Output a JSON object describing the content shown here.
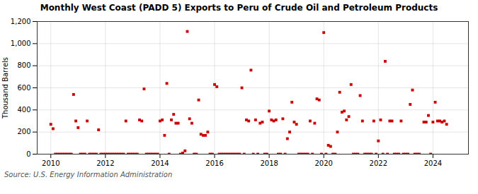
{
  "chart_data": {
    "type": "scatter",
    "title": "Monthly West Coast (PADD 5) Exports to Peru of Crude Oil and Petroleum Products",
    "ylabel": "Thousand Barrels",
    "source": "Source: U.S. Energy Information Administration",
    "color": "#cc0000",
    "marker": "square",
    "grid": true,
    "ylim": [
      0,
      1200
    ],
    "yticks": [
      0,
      200,
      400,
      600,
      800,
      {
        "value": 1000,
        "label": "1,000"
      },
      {
        "value": 1200,
        "label": "1,200"
      }
    ],
    "xlim": [
      2009.5,
      2025.3
    ],
    "xticks": [
      2010,
      2012,
      2014,
      2016,
      2018,
      2020,
      2022,
      2024
    ],
    "x": [
      2010.0,
      2010.083,
      2010.167,
      2010.25,
      2010.333,
      2010.417,
      2010.5,
      2010.583,
      2010.667,
      2010.75,
      2010.833,
      2010.917,
      2011.0,
      2011.083,
      2011.167,
      2011.25,
      2011.333,
      2011.417,
      2011.5,
      2011.583,
      2011.667,
      2011.75,
      2011.833,
      2011.917,
      2012.0,
      2012.083,
      2012.167,
      2012.25,
      2012.333,
      2012.417,
      2012.5,
      2012.583,
      2012.667,
      2012.75,
      2012.833,
      2012.917,
      2013.0,
      2013.083,
      2013.167,
      2013.25,
      2013.333,
      2013.417,
      2013.5,
      2013.583,
      2013.667,
      2013.75,
      2013.833,
      2013.917,
      2014.0,
      2014.083,
      2014.167,
      2014.25,
      2014.333,
      2014.417,
      2014.5,
      2014.583,
      2014.667,
      2014.75,
      2014.833,
      2014.917,
      2015.0,
      2015.083,
      2015.167,
      2015.25,
      2015.333,
      2015.417,
      2015.5,
      2015.583,
      2015.667,
      2015.75,
      2015.833,
      2015.917,
      2016.0,
      2016.083,
      2016.167,
      2016.25,
      2016.333,
      2016.417,
      2016.5,
      2016.583,
      2016.667,
      2016.75,
      2016.833,
      2016.917,
      2017.0,
      2017.083,
      2017.167,
      2017.25,
      2017.333,
      2017.417,
      2017.5,
      2017.583,
      2017.667,
      2017.75,
      2017.833,
      2017.917,
      2018.0,
      2018.083,
      2018.167,
      2018.25,
      2018.333,
      2018.417,
      2018.5,
      2018.583,
      2018.667,
      2018.75,
      2018.833,
      2018.917,
      2019.0,
      2019.083,
      2019.167,
      2019.25,
      2019.333,
      2019.417,
      2019.5,
      2019.583,
      2019.667,
      2019.75,
      2019.833,
      2019.917,
      2020.0,
      2020.083,
      2020.167,
      2020.25,
      2020.333,
      2020.417,
      2020.5,
      2020.583,
      2020.667,
      2020.75,
      2020.833,
      2020.917,
      2021.0,
      2021.083,
      2021.167,
      2021.25,
      2021.333,
      2021.417,
      2021.5,
      2021.583,
      2021.667,
      2021.75,
      2021.833,
      2021.917,
      2022.0,
      2022.083,
      2022.167,
      2022.25,
      2022.333,
      2022.417,
      2022.5,
      2022.583,
      2022.667,
      2022.75,
      2022.833,
      2022.917,
      2023.0,
      2023.083,
      2023.167,
      2023.25,
      2023.333,
      2023.417,
      2023.5,
      2023.667,
      2023.75,
      2023.833,
      2023.917,
      2024.0,
      2024.083,
      2024.167,
      2024.25,
      2024.333,
      2024.417,
      2024.5
    ],
    "values": [
      270,
      230,
      0,
      0,
      0,
      0,
      0,
      0,
      0,
      0,
      540,
      300,
      240,
      0,
      0,
      0,
      300,
      0,
      0,
      0,
      0,
      220,
      0,
      0,
      0,
      0,
      0,
      0,
      0,
      0,
      0,
      0,
      0,
      300,
      0,
      0,
      0,
      0,
      0,
      310,
      300,
      590,
      0,
      0,
      0,
      0,
      0,
      0,
      300,
      310,
      170,
      640,
      0,
      310,
      360,
      280,
      280,
      0,
      10,
      30,
      1110,
      320,
      280,
      0,
      0,
      490,
      180,
      170,
      170,
      200,
      0,
      0,
      630,
      610,
      0,
      0,
      0,
      0,
      0,
      0,
      0,
      0,
      0,
      0,
      600,
      0,
      310,
      300,
      760,
      0,
      310,
      0,
      280,
      290,
      0,
      0,
      390,
      310,
      300,
      310,
      0,
      0,
      320,
      0,
      140,
      200,
      470,
      290,
      270,
      0,
      0,
      0,
      0,
      0,
      300,
      0,
      280,
      500,
      490,
      0,
      1100,
      0,
      80,
      70,
      0,
      0,
      200,
      560,
      380,
      390,
      310,
      340,
      630,
      0,
      0,
      0,
      530,
      300,
      0,
      0,
      0,
      0,
      300,
      0,
      120,
      310,
      0,
      840,
      0,
      300,
      300,
      0,
      0,
      0,
      300,
      0,
      0,
      0,
      450,
      580,
      0,
      0,
      0,
      290,
      290,
      350,
      0,
      290,
      470,
      300,
      300,
      290,
      300,
      270
    ]
  }
}
